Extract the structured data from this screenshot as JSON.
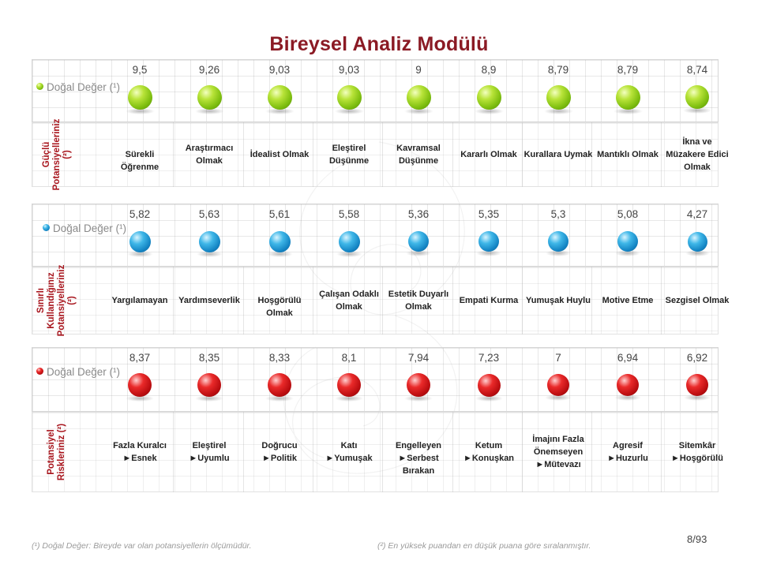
{
  "title": "Bireysel Analiz Modülü",
  "colors": {
    "title": "#8b1a24",
    "label": "#a8151d",
    "green": "#8cc81a",
    "blue": "#1f9ad6",
    "red": "#cc1014"
  },
  "sections": [
    {
      "legend_text": "Doğal Değer (¹)",
      "legend_color": "green",
      "side_label": "Güçlü Potansiyelleriniz (²)",
      "values": [
        "9,5",
        "9,26",
        "9,03",
        "9,03",
        "9",
        "8,9",
        "8,79",
        "8,79",
        "8,74"
      ],
      "numeric": [
        9.5,
        9.26,
        9.03,
        9.03,
        9,
        8.9,
        8.79,
        8.79,
        8.74
      ],
      "names": [
        [
          "Sürekli Öğrenme"
        ],
        [
          "Araştırmacı",
          "Olmak"
        ],
        [
          "İdealist Olmak"
        ],
        [
          "Eleştirel",
          "Düşünme"
        ],
        [
          "Kavramsal",
          "Düşünme"
        ],
        [
          "Kararlı Olmak"
        ],
        [
          "Kurallara Uymak"
        ],
        [
          "Mantıklı Olmak"
        ],
        [
          "İkna ve",
          "Müzakere Edici",
          "Olmak"
        ]
      ]
    },
    {
      "legend_text": "Doğal Değer (¹)",
      "legend_color": "blue",
      "side_label": "Sınırlı Kullandığınız Potansiyelleriniz (²)",
      "values": [
        "5,82",
        "5,63",
        "5,61",
        "5,58",
        "5,36",
        "5,35",
        "5,3",
        "5,08",
        "4,27"
      ],
      "numeric": [
        5.82,
        5.63,
        5.61,
        5.58,
        5.36,
        5.35,
        5.3,
        5.08,
        4.27
      ],
      "names": [
        [
          "Yargılamayan"
        ],
        [
          "Yardımseverlik"
        ],
        [
          "Hoşgörülü Olmak"
        ],
        [
          "Çalışan Odaklı",
          "Olmak"
        ],
        [
          "Estetik Duyarlı",
          "Olmak"
        ],
        [
          "Empati Kurma"
        ],
        [
          "Yumuşak Huylu"
        ],
        [
          "Motive Etme"
        ],
        [
          "Sezgisel Olmak"
        ]
      ]
    },
    {
      "legend_text": "Doğal Değer (¹)",
      "legend_color": "red",
      "side_label": "Potansiyel Riskleriniz (²)",
      "values": [
        "8,37",
        "8,35",
        "8,33",
        "8,1",
        "7,94",
        "7,23",
        "7",
        "6,94",
        "6,92"
      ],
      "numeric": [
        8.37,
        8.35,
        8.33,
        8.1,
        7.94,
        7.23,
        7,
        6.94,
        6.92
      ],
      "names": [
        [
          "Fazla Kuralcı",
          "►Esnek"
        ],
        [
          "Eleştirel",
          "►Uyumlu"
        ],
        [
          "Doğrucu",
          "►Politik"
        ],
        [
          "Katı",
          "►Yumuşak"
        ],
        [
          "Engelleyen",
          "►Serbest Bırakan"
        ],
        [
          "Ketum",
          "►Konuşkan"
        ],
        [
          "İmajını Fazla",
          "Önemseyen",
          "►Mütevazı"
        ],
        [
          "Agresif",
          "►Huzurlu"
        ],
        [
          "Sitemkâr",
          "►Hoşgörülü"
        ]
      ]
    }
  ],
  "footer": {
    "left": "(¹) Doğal Değer: Bireyde var olan potansiyellerin ölçümüdür.",
    "right": "(²) En yüksek puandan en düşük puana göre sıralanmıştır.",
    "page": "8/93"
  }
}
